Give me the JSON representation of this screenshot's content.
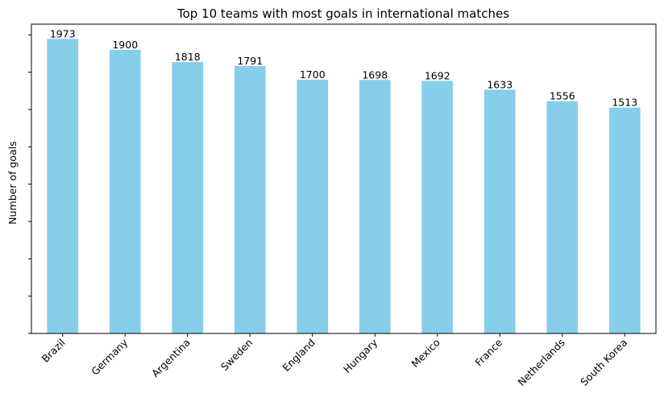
{
  "chart_data": {
    "type": "bar",
    "title": "Top 10 teams with most goals in international matches",
    "xlabel": "",
    "ylabel": "Number of goals",
    "categories": [
      "Brazil",
      "Germany",
      "Argentina",
      "Sweden",
      "England",
      "Hungary",
      "Mexico",
      "France",
      "Netherlands",
      "South Korea"
    ],
    "values": [
      1973,
      1900,
      1818,
      1791,
      1700,
      1698,
      1692,
      1633,
      1556,
      1513
    ],
    "ylim": [
      0,
      2071.65
    ],
    "y_tick_values": [
      0,
      250,
      500,
      750,
      1000,
      1250,
      1500,
      1750,
      2000
    ],
    "y_tick_labels_shown": false,
    "grid": false,
    "legend": "none",
    "bar_color": "#87ceeb",
    "x_tick_rotation_deg": -45
  }
}
